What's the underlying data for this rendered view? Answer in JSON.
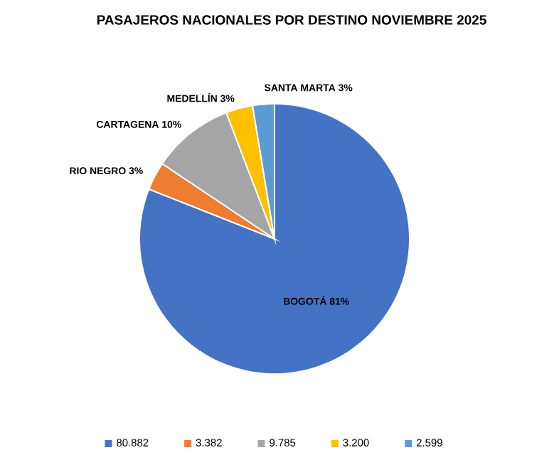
{
  "chart_data": {
    "type": "pie",
    "title": "PASAJEROS NACIONALES POR DESTINO NOVIEMBRE 2025",
    "categories": [
      "80.882",
      "3.382",
      "9.785",
      "3.200",
      "2.599"
    ],
    "values": [
      80882,
      3382,
      9785,
      3200,
      2599
    ],
    "value_labels": [
      "BOGOTÁ 81%",
      "RIO NEGRO 3%",
      "CARTAGENA 10%",
      "MEDELLÍN 3%",
      "SANTA MARTA 3%"
    ],
    "colors": [
      "#4472c4",
      "#ed7d31",
      "#a5a5a5",
      "#ffc000",
      "#5b9bd5"
    ],
    "legend": "bottom"
  }
}
